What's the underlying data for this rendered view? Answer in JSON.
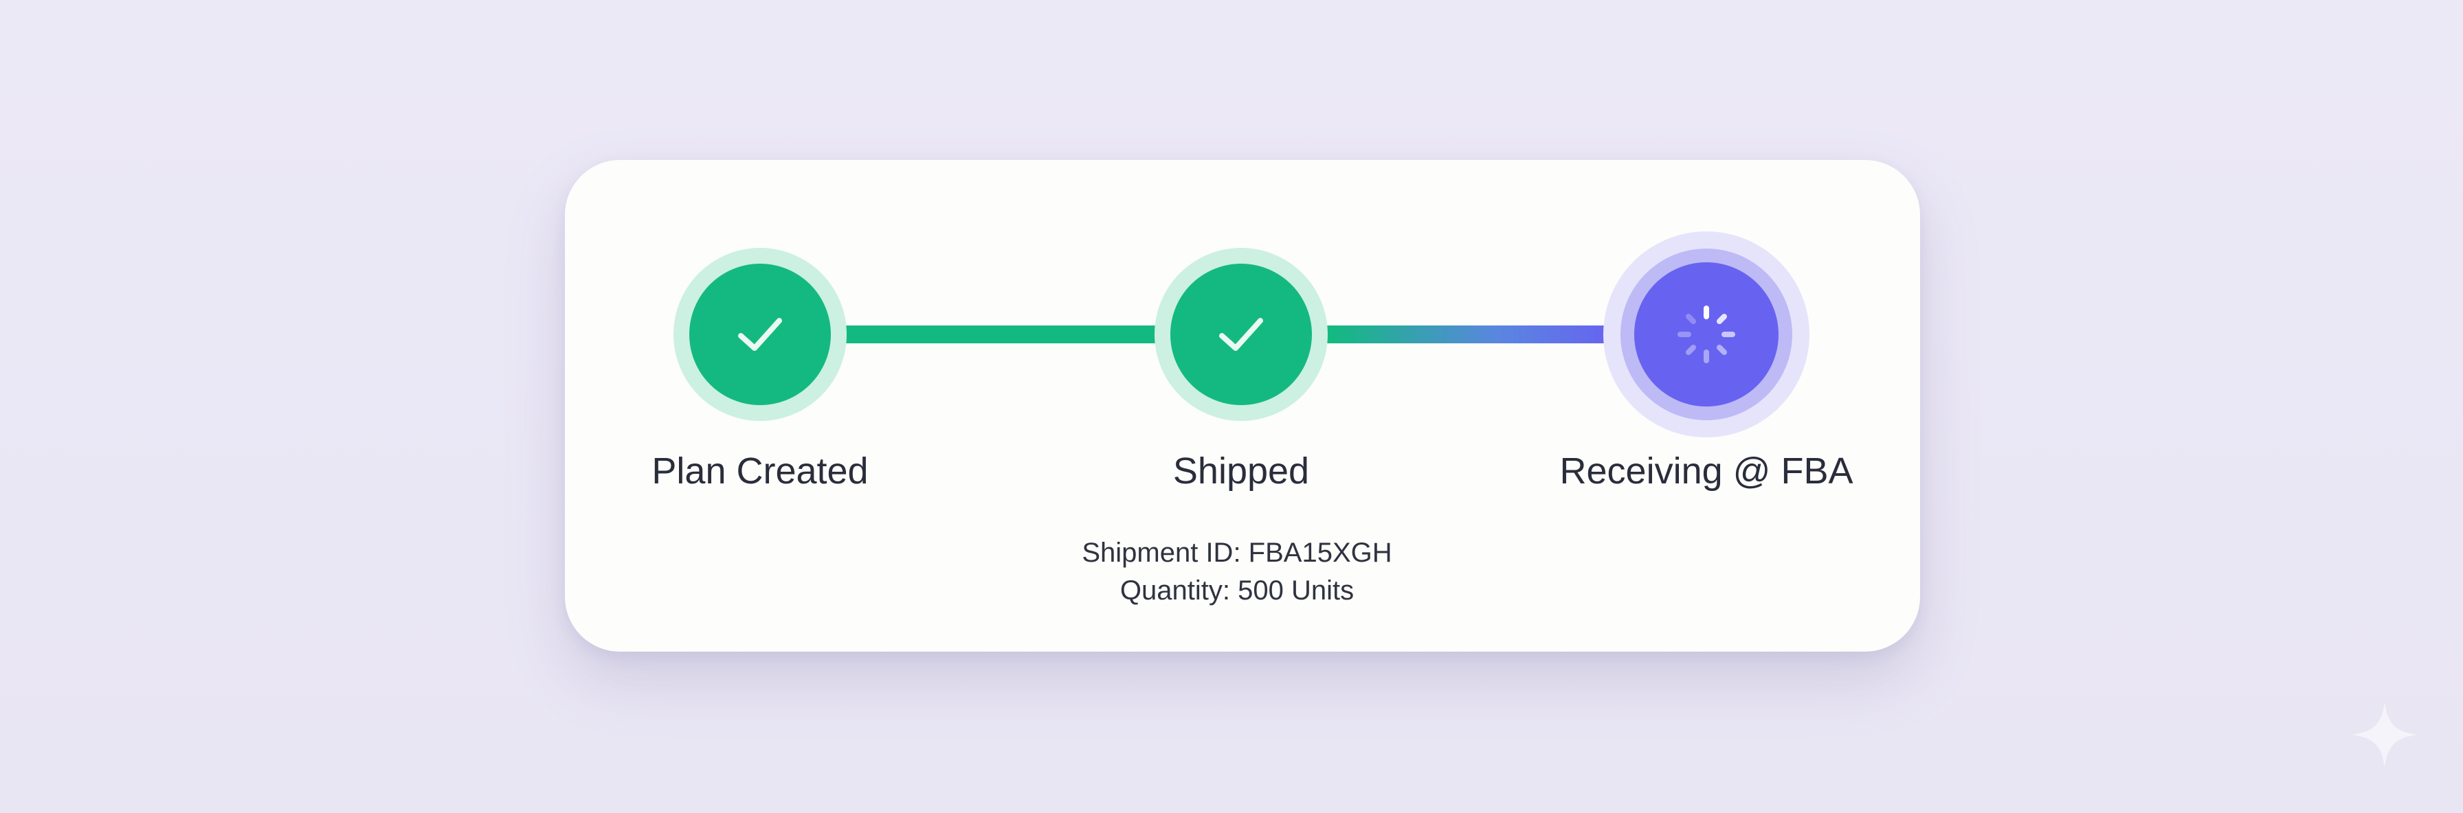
{
  "steps": [
    {
      "label": "Plan Created",
      "status": "completed",
      "icon": "check-icon"
    },
    {
      "label": "Shipped",
      "status": "completed",
      "icon": "check-icon"
    },
    {
      "label": "Receiving @ FBA",
      "status": "in-progress",
      "icon": "spinner-icon"
    }
  ],
  "details": {
    "shipment_id": "Shipment ID: FBA15XGH",
    "quantity": "Quantity: 500 Units"
  },
  "colors": {
    "completed": "#14b981",
    "active": "#6763f0",
    "background": "#ebe8f5",
    "card": "#fdfdfc"
  },
  "watermark_icon": "sparkle-icon"
}
